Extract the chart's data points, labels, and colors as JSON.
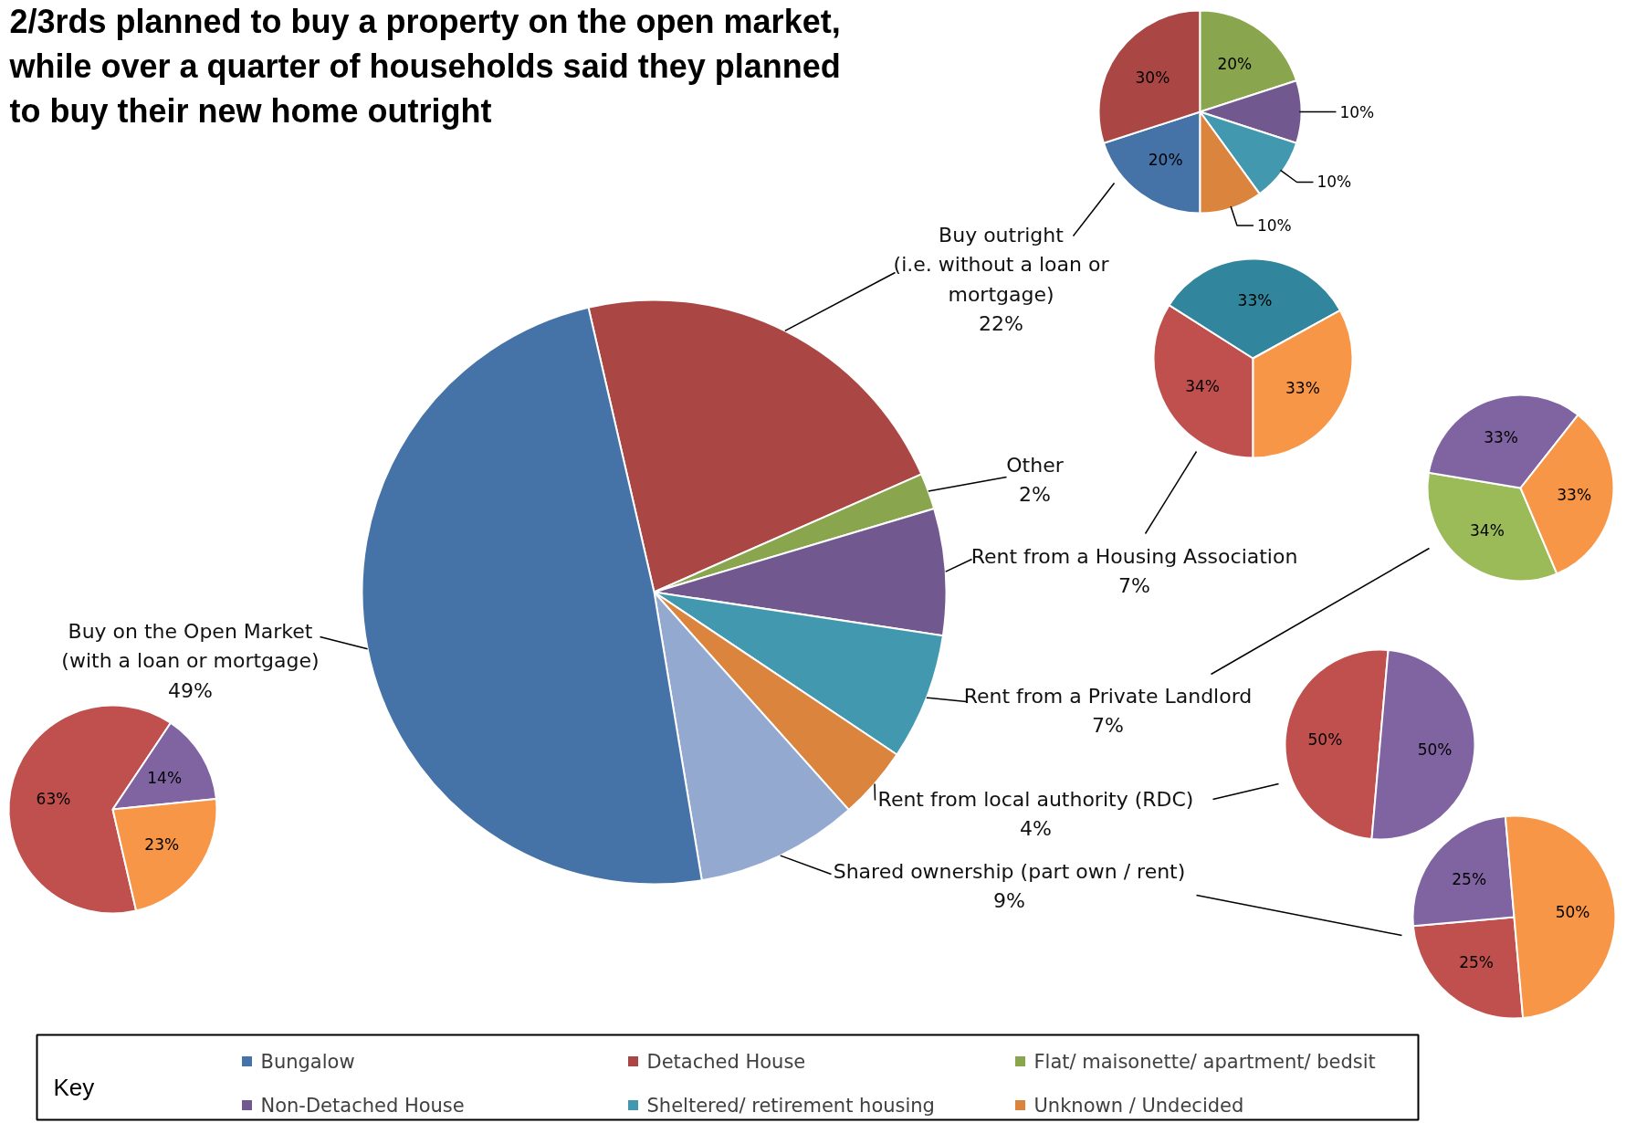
{
  "chart_data": [
    {
      "type": "pie",
      "title": "2/3rds planned to buy a property on the open market, while over a quarter of households said they planned to buy their new home outright",
      "categories": [
        "Buy outright\n(i.e. without a loan or\nmortgage)",
        "Other",
        "Rent from a Housing Association",
        "Rent from a Private Landlord",
        "Rent from local authority (RDC)",
        "Shared ownership (part own / rent)",
        "Buy on the Open Market\n(with a loan or mortgage)"
      ],
      "values": [
        22,
        2,
        7,
        7,
        4,
        9,
        49
      ],
      "value_labels": [
        "22%",
        "2%",
        "7%",
        "7%",
        "4%",
        "9%",
        "49%"
      ],
      "colors": [
        "#aa4643",
        "#89a54e",
        "#71588f",
        "#4198af",
        "#db843d",
        "#93a9cf",
        "#4572a7"
      ]
    },
    {
      "type": "pie",
      "legend": "bottom",
      "legend_title": "Key",
      "categories": [
        "Bungalow",
        "Detached House",
        "Flat/ maisonette/ apartment/ bedsit",
        "Non-Detached House",
        "Sheltered/ retirement housing",
        "Unknown / Undecided"
      ],
      "values": [
        20,
        30,
        20,
        10,
        10,
        10
      ],
      "value_labels": [
        "20%",
        "30%",
        "20%",
        "10%",
        "10%",
        "10%"
      ],
      "colors": [
        "#4572a7",
        "#aa4643",
        "#89a54e",
        "#71588f",
        "#4198af",
        "#db843d"
      ]
    },
    {
      "type": "pie",
      "categories": [
        null,
        null,
        null
      ],
      "values": [
        34,
        33,
        33
      ],
      "value_labels": [
        "34%",
        "33%",
        "33%"
      ],
      "colors": [
        "#c0504d",
        "#31859c",
        "#f79646"
      ]
    },
    {
      "type": "pie",
      "categories": [
        null,
        null,
        null
      ],
      "values": [
        34,
        33,
        33
      ],
      "value_labels": [
        "34%",
        "33%",
        "33%"
      ],
      "colors": [
        "#9bbb59",
        "#8064a2",
        "#f79646"
      ]
    },
    {
      "type": "pie",
      "categories": [
        null,
        null
      ],
      "values": [
        50,
        50
      ],
      "value_labels": [
        "50%",
        "50%"
      ],
      "colors": [
        "#c0504d",
        "#8064a2"
      ]
    },
    {
      "type": "pie",
      "categories": [
        null,
        null,
        null
      ],
      "values": [
        25,
        25,
        50
      ],
      "value_labels": [
        "25%",
        "25%",
        "50%"
      ],
      "colors": [
        "#c0504d",
        "#8064a2",
        "#f79646"
      ]
    },
    {
      "type": "pie",
      "categories": [
        null,
        null,
        null
      ],
      "values": [
        63,
        14,
        23
      ],
      "value_labels": [
        "63%",
        "14%",
        "23%"
      ],
      "colors": [
        "#c0504d",
        "#8064a2",
        "#f79646"
      ]
    }
  ]
}
